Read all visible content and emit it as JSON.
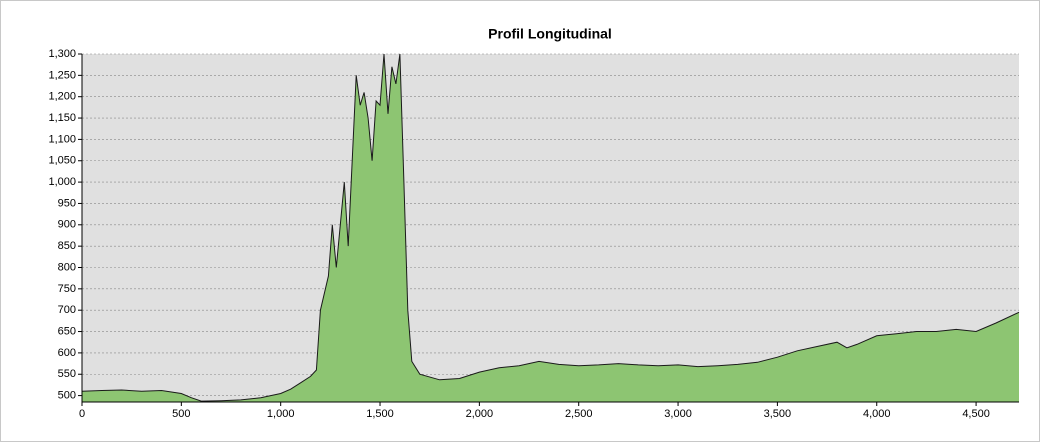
{
  "chart_data": {
    "type": "area",
    "title": "Profil Longitudinal",
    "x": [
      0,
      100,
      200,
      300,
      400,
      500,
      550,
      600,
      700,
      800,
      900,
      1000,
      1050,
      1100,
      1150,
      1180,
      1200,
      1220,
      1240,
      1260,
      1280,
      1300,
      1320,
      1340,
      1360,
      1380,
      1400,
      1420,
      1440,
      1460,
      1480,
      1500,
      1520,
      1540,
      1560,
      1580,
      1600,
      1620,
      1640,
      1660,
      1700,
      1800,
      1900,
      2000,
      2100,
      2200,
      2300,
      2400,
      2500,
      2600,
      2700,
      2800,
      2900,
      3000,
      3100,
      3200,
      3300,
      3400,
      3500,
      3600,
      3700,
      3800,
      3850,
      3900,
      4000,
      4100,
      4200,
      4300,
      4400,
      4500,
      4600,
      4716
    ],
    "series": [
      {
        "color": "#8dc572",
        "values": [
          510,
          512,
          513,
          510,
          512,
          505,
          495,
          487,
          488,
          490,
          495,
          505,
          515,
          530,
          545,
          560,
          700,
          740,
          780,
          900,
          800,
          900,
          1000,
          850,
          1050,
          1250,
          1180,
          1210,
          1150,
          1050,
          1190,
          1180,
          1300,
          1160,
          1270,
          1230,
          1300,
          1000,
          700,
          580,
          550,
          537,
          540,
          555,
          565,
          570,
          580,
          573,
          570,
          572,
          575,
          572,
          570,
          572,
          568,
          570,
          573,
          578,
          590,
          605,
          615,
          625,
          612,
          620,
          640,
          645,
          650,
          650,
          655,
          650,
          670,
          695
        ]
      }
    ],
    "xlim": [
      0,
      4716
    ],
    "ylim": [
      485,
      1300
    ],
    "xticks": [
      0,
      500,
      {
        "value": 1000,
        "label": "1,000"
      },
      {
        "value": 1500,
        "label": "1,500"
      },
      {
        "value": 2000,
        "label": "2,000"
      },
      {
        "value": 2500,
        "label": "2,500"
      },
      {
        "value": 3000,
        "label": "3,000"
      },
      {
        "value": 3500,
        "label": "3,500"
      },
      {
        "value": 4000,
        "label": "4,000"
      },
      {
        "value": 4500,
        "label": "4,500"
      }
    ],
    "yticks": [
      500,
      550,
      600,
      650,
      700,
      750,
      800,
      850,
      900,
      950,
      {
        "value": 1000,
        "label": "1,000"
      },
      {
        "value": 1050,
        "label": "1,050"
      },
      {
        "value": 1100,
        "label": "1,100"
      },
      {
        "value": 1150,
        "label": "1,150"
      },
      {
        "value": 1200,
        "label": "1,200"
      },
      {
        "value": 1250,
        "label": "1,250"
      },
      {
        "value": 1300,
        "label": "1,300"
      }
    ],
    "grid": true
  }
}
